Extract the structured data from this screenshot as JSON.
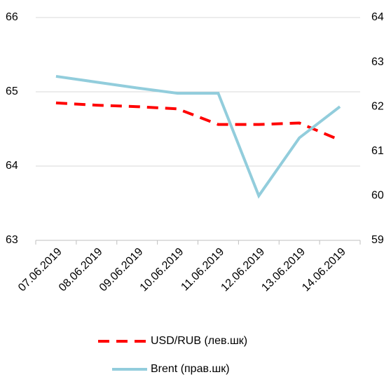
{
  "chart_data": {
    "type": "line",
    "categories": [
      "07.06.2019",
      "08.06.2019",
      "09.06.2019",
      "10.06.2019",
      "11.06.2019",
      "12.06.2019",
      "13.06.2019",
      "14.06.2019"
    ],
    "series": [
      {
        "name": "USD/RUB (лев.шк)",
        "color": "#ff0000",
        "dashed": true,
        "values": [
          64.85,
          64.82,
          64.8,
          64.77,
          64.56,
          64.56,
          64.58,
          64.35
        ]
      },
      {
        "name": "Brent (прав.шк)",
        "color": "#92cddc",
        "axis": "y2",
        "values": [
          62.68,
          62.55,
          62.42,
          62.3,
          62.3,
          60.0,
          61.3,
          62.0
        ]
      }
    ],
    "ylim": [
      63,
      66
    ],
    "yticks": [
      63,
      64,
      65,
      66
    ],
    "y2lim": [
      59,
      64
    ],
    "y2ticks": [
      59,
      60,
      61,
      62,
      63,
      64
    ],
    "grid": true,
    "legend": "bottom"
  }
}
